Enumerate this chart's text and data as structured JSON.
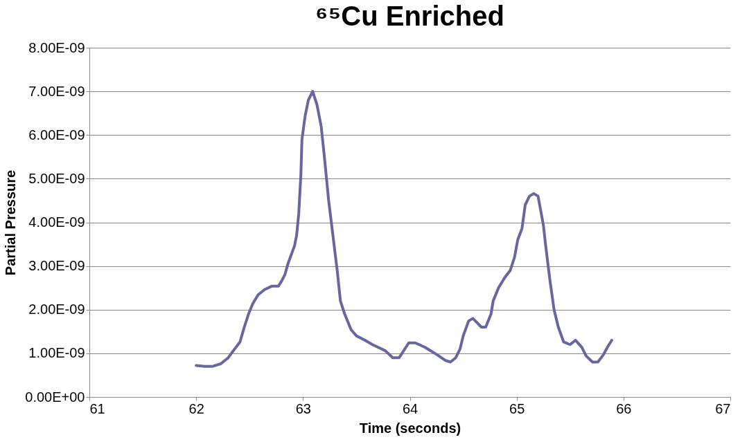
{
  "chart_data": {
    "type": "line",
    "title": "⁶⁵Cu Enriched",
    "xlabel": "Time (seconds)",
    "ylabel": "Partial Pressure",
    "xlim": [
      61,
      67
    ],
    "xticks": [
      61,
      62,
      63,
      64,
      65,
      66,
      67
    ],
    "ylim": [
      0,
      8e-09
    ],
    "yticks": [
      {
        "value": 0,
        "label": "0.00E+00"
      },
      {
        "value": 1e-09,
        "label": "1.00E-09"
      },
      {
        "value": 2e-09,
        "label": "2.00E-09"
      },
      {
        "value": 3e-09,
        "label": "3.00E-09"
      },
      {
        "value": 4e-09,
        "label": "4.00E-09"
      },
      {
        "value": 5e-09,
        "label": "5.00E-09"
      },
      {
        "value": 6e-09,
        "label": "6.00E-09"
      },
      {
        "value": 7e-09,
        "label": "7.00E-09"
      },
      {
        "value": 8e-09,
        "label": "8.00E-09"
      }
    ],
    "grid": "y",
    "marker": "none",
    "line_style": "solid",
    "x": [
      62.0,
      62.08,
      62.15,
      62.23,
      62.3,
      62.36,
      62.41,
      62.45,
      62.49,
      62.53,
      62.58,
      62.64,
      62.71,
      62.77,
      62.8,
      62.83,
      62.86,
      62.92,
      62.94,
      62.96,
      62.98,
      62.99,
      63.02,
      63.05,
      63.09,
      63.13,
      63.17,
      63.2,
      63.24,
      63.28,
      63.32,
      63.35,
      63.39,
      63.45,
      63.5,
      63.58,
      63.65,
      63.77,
      63.84,
      63.9,
      63.99,
      64.05,
      64.14,
      64.26,
      64.33,
      64.38,
      64.43,
      64.47,
      64.5,
      64.55,
      64.59,
      64.67,
      64.71,
      64.76,
      64.78,
      64.83,
      64.89,
      64.94,
      64.98,
      65.01,
      65.05,
      65.08,
      65.12,
      65.16,
      65.2,
      65.22,
      65.25,
      65.27,
      65.31,
      65.35,
      65.39,
      65.44,
      65.5,
      65.55,
      65.61,
      65.65,
      65.71,
      65.76,
      65.81,
      65.85,
      65.89
    ],
    "series": [
      {
        "color": "#6666a0",
        "values": [
          7.2e-10,
          7e-10,
          7e-10,
          7.6e-10,
          9e-10,
          1.1e-09,
          1.26e-09,
          1.6e-09,
          1.9e-09,
          2.14e-09,
          2.34e-09,
          2.46e-09,
          2.54e-09,
          2.54e-09,
          2.66e-09,
          2.8e-09,
          3.06e-09,
          3.46e-09,
          3.7e-09,
          4.2e-09,
          5.1e-09,
          5.9e-09,
          6.44e-09,
          6.8e-09,
          7e-09,
          6.7e-09,
          6.2e-09,
          5.5e-09,
          4.5e-09,
          3.7e-09,
          2.9e-09,
          2.2e-09,
          1.9e-09,
          1.54e-09,
          1.4e-09,
          1.3e-09,
          1.2e-09,
          1.06e-09,
          9e-10,
          9e-10,
          1.24e-09,
          1.24e-09,
          1.14e-09,
          9.6e-10,
          8.4e-10,
          8e-10,
          9e-10,
          1.1e-09,
          1.4e-09,
          1.74e-09,
          1.8e-09,
          1.6e-09,
          1.6e-09,
          1.9e-09,
          2.2e-09,
          2.5e-09,
          2.74e-09,
          2.9e-09,
          3.2e-09,
          3.6e-09,
          3.86e-09,
          4.4e-09,
          4.6e-09,
          4.66e-09,
          4.6e-09,
          4.34e-09,
          3.94e-09,
          3.5e-09,
          2.7e-09,
          2e-09,
          1.6e-09,
          1.26e-09,
          1.2e-09,
          1.3e-09,
          1.14e-09,
          9.4e-10,
          8e-10,
          8e-10,
          9.6e-10,
          1.14e-09,
          1.3e-09
        ]
      }
    ]
  }
}
